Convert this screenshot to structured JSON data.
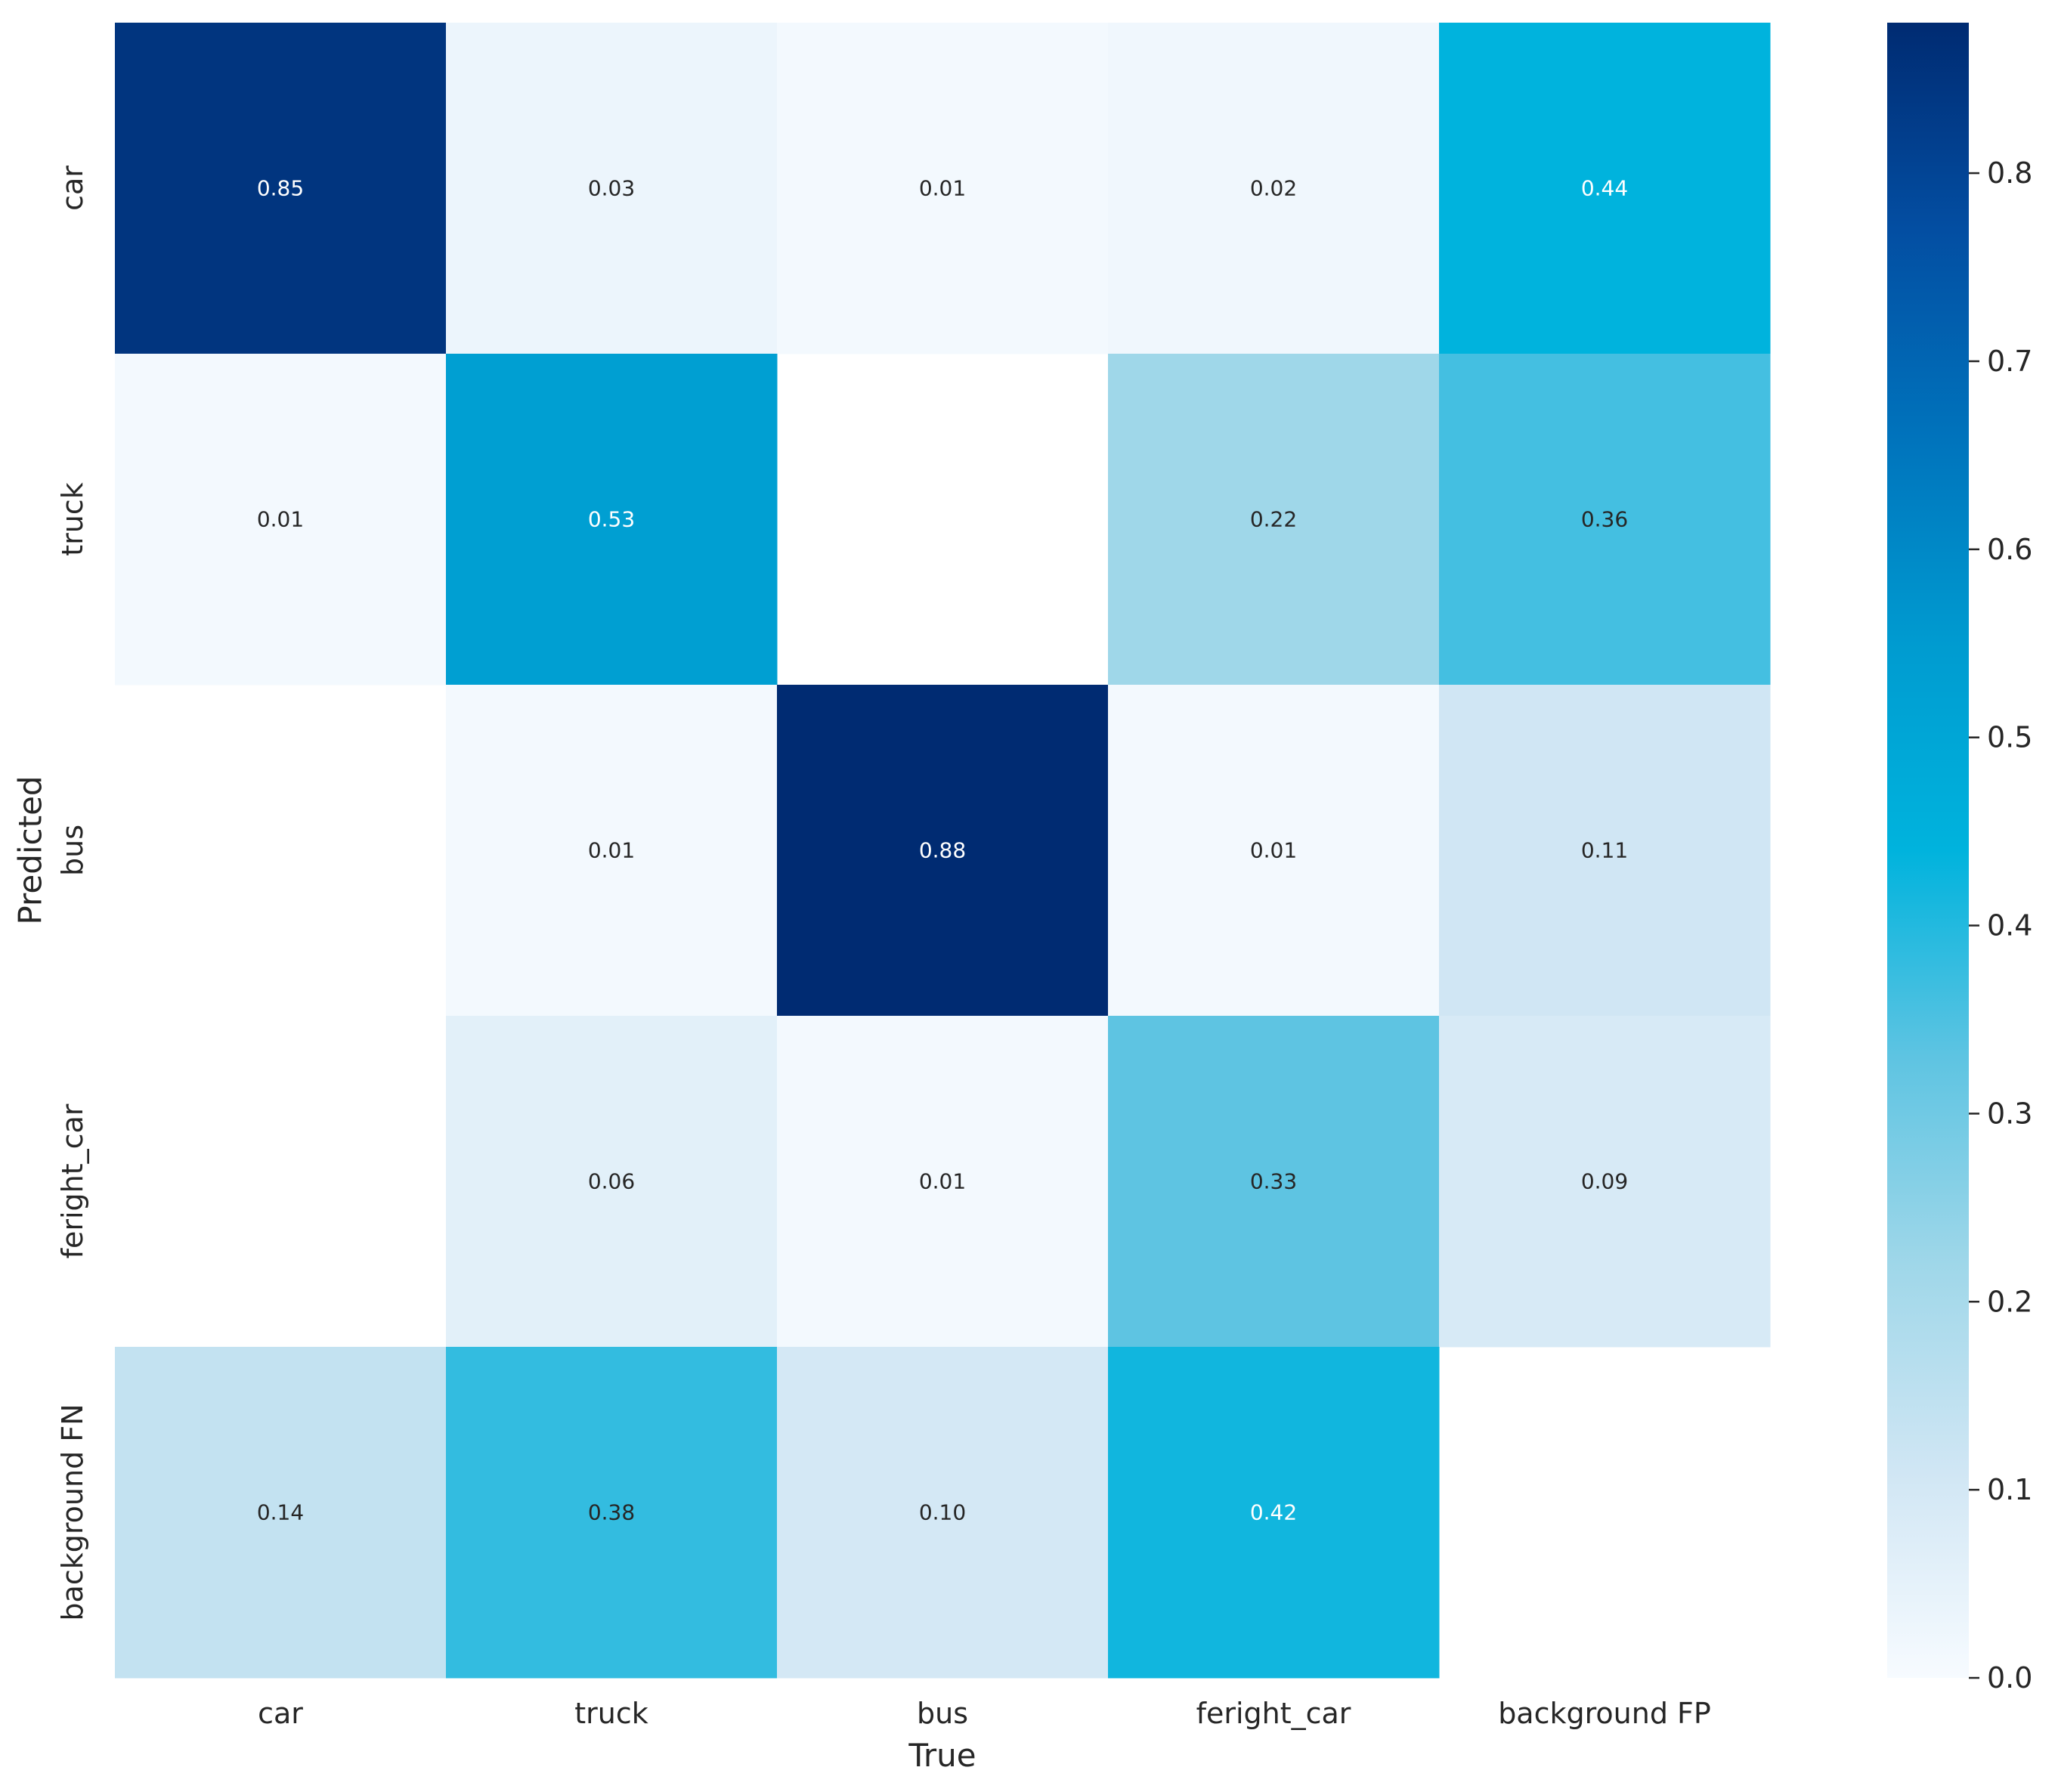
{
  "chart_data": {
    "type": "heatmap",
    "title": "",
    "xlabel": "True",
    "ylabel": "Predicted",
    "x_categories": [
      "car",
      "truck",
      "bus",
      "feright_car",
      "background FP"
    ],
    "y_categories": [
      "car",
      "truck",
      "bus",
      "feright_car",
      "background FN"
    ],
    "values": [
      [
        0.85,
        0.03,
        0.01,
        0.02,
        0.44
      ],
      [
        0.01,
        0.53,
        null,
        0.22,
        0.36
      ],
      [
        null,
        0.01,
        0.88,
        0.01,
        0.11
      ],
      [
        null,
        0.06,
        0.01,
        0.33,
        0.09
      ],
      [
        0.14,
        0.38,
        0.1,
        0.42,
        null
      ]
    ],
    "value_labels": [
      [
        "0.85",
        "0.03",
        "0.01",
        "0.02",
        "0.44"
      ],
      [
        "0.01",
        "0.53",
        "",
        "0.22",
        "0.36"
      ],
      [
        "",
        "0.01",
        "0.88",
        "0.01",
        "0.11"
      ],
      [
        "",
        "0.06",
        "0.01",
        "0.33",
        "0.09"
      ],
      [
        "0.14",
        "0.38",
        "0.10",
        "0.42",
        ""
      ]
    ],
    "colorbar": {
      "min": 0.0,
      "max": 0.88,
      "ticks": [
        0.0,
        0.1,
        0.2,
        0.3,
        0.4,
        0.5,
        0.6,
        0.7,
        0.8
      ],
      "tick_labels": [
        "0.0",
        "0.1",
        "0.2",
        "0.3",
        "0.4",
        "0.5",
        "0.6",
        "0.7",
        "0.8"
      ],
      "colormap_stops": [
        "#f7fbff",
        "#d0e6f4",
        "#9fd7e9",
        "#5ec4e2",
        "#00b3dd",
        "#009bd0",
        "#0073bc",
        "#034ea2",
        "#002b72"
      ]
    },
    "legend": "colorbar-right"
  }
}
